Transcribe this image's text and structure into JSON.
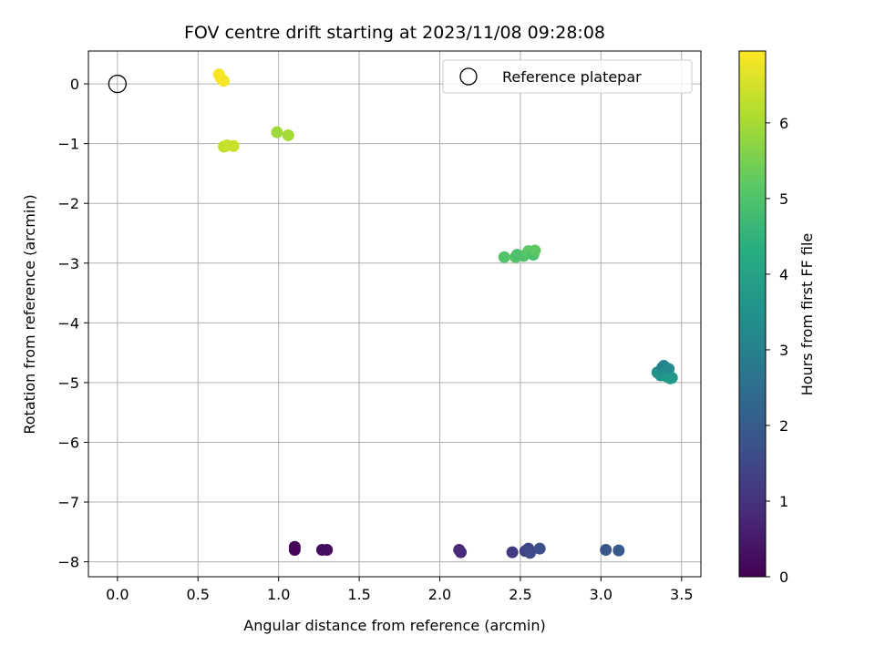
{
  "chart_data": {
    "type": "scatter",
    "title": "FOV centre drift starting at 2023/11/08 09:28:08",
    "xlabel": "Angular distance from reference (arcmin)",
    "ylabel": "Rotation from reference (arcmin)",
    "xlim": [
      -0.18,
      3.62
    ],
    "ylim": [
      -8.25,
      0.55
    ],
    "xticks": [
      0.0,
      0.5,
      1.0,
      1.5,
      2.0,
      2.5,
      3.0,
      3.5
    ],
    "yticks": [
      0,
      -1,
      -2,
      -3,
      -4,
      -5,
      -6,
      -7,
      -8
    ],
    "grid": true,
    "legend": {
      "placement": "top-right",
      "entries": [
        "Reference platepar"
      ]
    },
    "reference_point": {
      "x": 0.0,
      "y": 0.0
    },
    "colorbar": {
      "label": "Hours from first FF file",
      "range": [
        0,
        6.95
      ],
      "ticks": [
        0,
        1,
        2,
        3,
        4,
        5,
        6
      ],
      "colormap": "viridis"
    },
    "series": [
      {
        "values": [
          {
            "x": 1.1,
            "y": -7.75,
            "c": 0.05
          },
          {
            "x": 1.1,
            "y": -7.8,
            "c": 0.1
          },
          {
            "x": 1.27,
            "y": -7.8,
            "c": 0.25
          },
          {
            "x": 1.3,
            "y": -7.8,
            "c": 0.3
          },
          {
            "x": 2.12,
            "y": -7.8,
            "c": 0.8
          },
          {
            "x": 2.13,
            "y": -7.84,
            "c": 0.85
          },
          {
            "x": 2.45,
            "y": -7.84,
            "c": 1.2
          },
          {
            "x": 2.53,
            "y": -7.82,
            "c": 1.35
          },
          {
            "x": 2.55,
            "y": -7.78,
            "c": 1.45
          },
          {
            "x": 2.56,
            "y": -7.85,
            "c": 1.55
          },
          {
            "x": 2.62,
            "y": -7.78,
            "c": 1.7
          },
          {
            "x": 3.03,
            "y": -7.8,
            "c": 1.85
          },
          {
            "x": 3.11,
            "y": -7.81,
            "c": 1.95
          },
          {
            "x": 3.35,
            "y": -4.83,
            "c": 3.5
          },
          {
            "x": 3.37,
            "y": -4.88,
            "c": 3.55
          },
          {
            "x": 3.38,
            "y": -4.75,
            "c": 3.2
          },
          {
            "x": 3.39,
            "y": -4.72,
            "c": 3.1
          },
          {
            "x": 3.4,
            "y": -4.82,
            "c": 3.4
          },
          {
            "x": 3.41,
            "y": -4.9,
            "c": 3.65
          },
          {
            "x": 3.42,
            "y": -4.77,
            "c": 3.3
          },
          {
            "x": 3.43,
            "y": -4.93,
            "c": 3.8
          },
          {
            "x": 3.44,
            "y": -4.92,
            "c": 3.7
          },
          {
            "x": 2.4,
            "y": -2.9,
            "c": 5.05
          },
          {
            "x": 2.47,
            "y": -2.9,
            "c": 5.1
          },
          {
            "x": 2.48,
            "y": -2.86,
            "c": 4.95
          },
          {
            "x": 2.52,
            "y": -2.88,
            "c": 5.0
          },
          {
            "x": 2.55,
            "y": -2.8,
            "c": 5.15
          },
          {
            "x": 2.58,
            "y": -2.86,
            "c": 4.9
          },
          {
            "x": 2.59,
            "y": -2.79,
            "c": 5.2
          },
          {
            "x": 0.99,
            "y": -0.81,
            "c": 5.95
          },
          {
            "x": 1.06,
            "y": -0.86,
            "c": 6.0
          },
          {
            "x": 0.66,
            "y": -1.05,
            "c": 6.3
          },
          {
            "x": 0.68,
            "y": -1.03,
            "c": 6.35
          },
          {
            "x": 0.72,
            "y": -1.04,
            "c": 6.4
          },
          {
            "x": 0.63,
            "y": 0.16,
            "c": 6.9
          },
          {
            "x": 0.64,
            "y": 0.1,
            "c": 6.88
          },
          {
            "x": 0.66,
            "y": 0.05,
            "c": 6.85
          }
        ]
      }
    ]
  }
}
